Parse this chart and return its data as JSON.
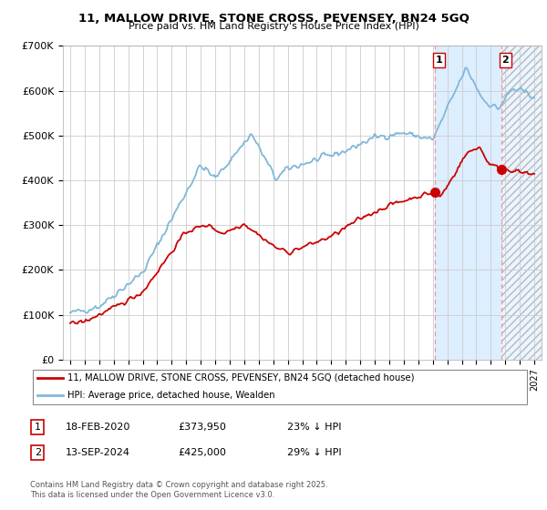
{
  "title": "11, MALLOW DRIVE, STONE CROSS, PEVENSEY, BN24 5GQ",
  "subtitle": "Price paid vs. HM Land Registry's House Price Index (HPI)",
  "legend_label_red": "11, MALLOW DRIVE, STONE CROSS, PEVENSEY, BN24 5GQ (detached house)",
  "legend_label_blue": "HPI: Average price, detached house, Wealden",
  "annotation1_date": "18-FEB-2020",
  "annotation1_price": "£373,950",
  "annotation1_hpi": "23% ↓ HPI",
  "annotation2_date": "13-SEP-2024",
  "annotation2_price": "£425,000",
  "annotation2_hpi": "29% ↓ HPI",
  "footer": "Contains HM Land Registry data © Crown copyright and database right 2025.\nThis data is licensed under the Open Government Licence v3.0.",
  "red_color": "#cc0000",
  "blue_color": "#7fb8d8",
  "annotation_color": "#cc0000",
  "background_color": "#ffffff",
  "grid_color": "#cccccc",
  "shade_blue_color": "#ddeeff",
  "ylim": [
    0,
    700000
  ],
  "yticks": [
    0,
    100000,
    200000,
    300000,
    400000,
    500000,
    600000,
    700000
  ],
  "xlim_start": 1994.5,
  "xlim_end": 2027.5,
  "point1_x": 2020.12,
  "point1_y": 373950,
  "point2_x": 2024.71,
  "point2_y": 425000,
  "hatch_start": 2025.0
}
